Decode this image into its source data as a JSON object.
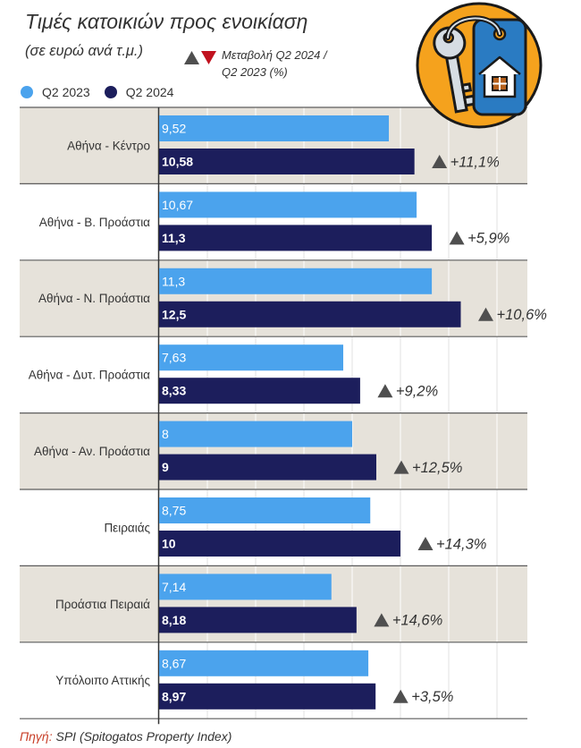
{
  "chart_data": {
    "type": "bar",
    "orientation": "horizontal",
    "title": "Τιμές κατοικιών προς ενοικίαση",
    "subtitle": "(σε ευρώ ανά τ.μ.)",
    "categories": [
      "Αθήνα - Κέντρο",
      "Αθήνα - Β. Προάστια",
      "Αθήνα - Ν. Προάστια",
      "Αθήνα - Δυτ. Προάστια",
      "Αθήνα - Αν. Προάστια",
      "Πειραιάς",
      "Προάστια Πειραιά",
      "Υπόλοιπο Αττικής"
    ],
    "series": [
      {
        "name": "Q2 2023",
        "color": "#4ba3ed",
        "values": [
          9.52,
          10.67,
          11.3,
          7.63,
          8,
          8.75,
          7.14,
          8.67
        ],
        "value_labels": [
          "9,52",
          "10,67",
          "11,3",
          "7,63",
          "8",
          "8,75",
          "7,14",
          "8,67"
        ]
      },
      {
        "name": "Q2 2024",
        "color": "#1c1e5c",
        "values": [
          10.58,
          11.3,
          12.5,
          8.33,
          9,
          10,
          8.18,
          8.97
        ],
        "value_labels": [
          "10,58",
          "11,3",
          "12,5",
          "8,33",
          "9",
          "10",
          "8,18",
          "8,97"
        ]
      }
    ],
    "change_pct": [
      11.1,
      5.9,
      10.6,
      9.2,
      12.5,
      14.3,
      14.6,
      3.5
    ],
    "change_labels": [
      "+11,1%",
      "+5,9%",
      "+10,6%",
      "+9,2%",
      "+12,5%",
      "+14,3%",
      "+14,6%",
      "+3,5%"
    ],
    "change_legend": {
      "line1": "Μεταβολή Q2 2024 /",
      "line2": "Q2 2023 (%)"
    },
    "change_colors": {
      "up": "#4f4f4f",
      "down": "#c1121f"
    },
    "xlim": [
      0,
      15
    ],
    "x_grid_step": 2,
    "grid": true,
    "legend_position": "top-left"
  },
  "icons": {
    "badge": "rental-key-house-tag-icon",
    "change_up": "triangle-up-icon",
    "change_down": "triangle-down-icon"
  },
  "colors": {
    "row_band": "#e6e2da",
    "badge": "#f5a21d",
    "source_label": "#c8402a",
    "text": "#333333"
  },
  "source": {
    "label": "Πηγή:",
    "text": "SPI (Spitogatos Property Index)"
  }
}
